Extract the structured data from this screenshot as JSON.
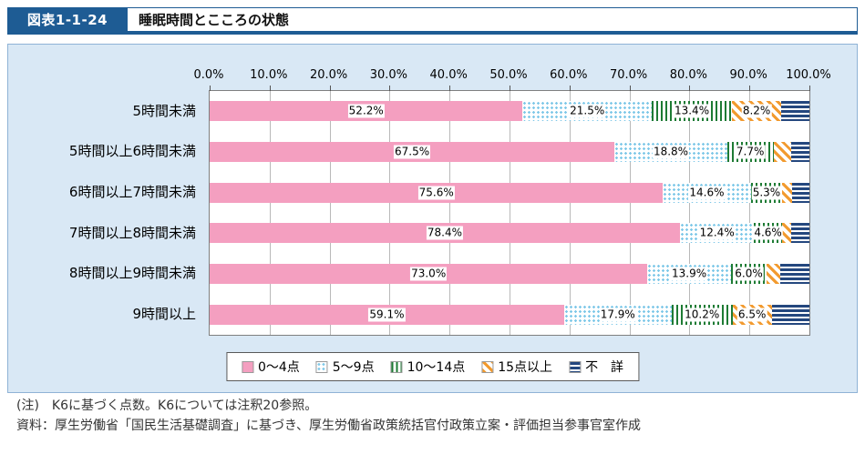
{
  "header": {
    "fig_label": "図表1-1-24",
    "title": "睡眠時間とこころの状態"
  },
  "chart_data": {
    "type": "bar",
    "orientation": "horizontal",
    "stacked": true,
    "grid": true,
    "legend_position": "bottom",
    "categories": [
      "5時間未満",
      "5時間以上6時間未満",
      "6時間以上7時間未満",
      "7時間以上8時間未満",
      "8時間以上9時間未満",
      "9時間以上"
    ],
    "x_axis": {
      "min": 0,
      "max": 100,
      "ticks": [
        "0.0%",
        "10.0%",
        "20.0%",
        "30.0%",
        "40.0%",
        "50.0%",
        "60.0%",
        "70.0%",
        "80.0%",
        "90.0%",
        "100.0%"
      ]
    },
    "series": [
      {
        "name": "0〜4点",
        "legend_label": "0〜4点",
        "pattern": "solid",
        "color": "#f49fc0",
        "values": [
          52.2,
          67.5,
          75.6,
          78.4,
          73.0,
          59.1
        ],
        "labels": [
          "52.2%",
          "67.5%",
          "75.6%",
          "78.4%",
          "73.0%",
          "59.1%"
        ]
      },
      {
        "name": "5〜9点",
        "legend_label": "5〜9点",
        "pattern": "dots",
        "color": "#7ec8e8",
        "values": [
          21.5,
          18.8,
          14.6,
          12.4,
          13.9,
          17.9
        ],
        "labels": [
          "21.5%",
          "18.8%",
          "14.6%",
          "12.4%",
          "13.9%",
          "17.9%"
        ]
      },
      {
        "name": "10〜14点",
        "legend_label": "10〜14点",
        "pattern": "vstripes",
        "color": "#1e7b34",
        "values": [
          13.4,
          7.7,
          5.3,
          4.6,
          6.0,
          10.2
        ],
        "labels": [
          "13.4%",
          "7.7%",
          "5.3%",
          "4.6%",
          "6.0%",
          "10.2%"
        ]
      },
      {
        "name": "15点以上",
        "legend_label": "15点以上",
        "pattern": "dstripes",
        "color": "#f29a2e",
        "values": [
          8.2,
          2.9,
          1.6,
          1.5,
          2.3,
          6.5
        ],
        "labels": [
          "8.2%",
          "",
          "",
          "",
          "",
          "6.5%"
        ]
      },
      {
        "name": "不詳",
        "legend_label": "不　詳",
        "pattern": "hstripes",
        "color": "#24477e",
        "values": [
          4.7,
          3.1,
          2.9,
          3.1,
          4.8,
          6.3
        ],
        "labels": [
          "",
          "",
          "",
          "",
          "",
          ""
        ]
      }
    ]
  },
  "notes": {
    "note1": "(注)　K6に基づく点数。K6については注釈20参照。",
    "note2": "資料：厚生労働省「国民生活基礎調査」に基づき、厚生労働省政策統括官付政策立案・評価担当参事官室作成"
  }
}
